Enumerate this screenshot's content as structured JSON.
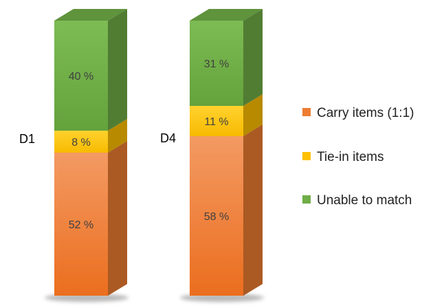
{
  "chart_data": {
    "type": "bar",
    "stacked": true,
    "three_d": true,
    "unit": "%",
    "categories": [
      "D1",
      "D4"
    ],
    "series": [
      {
        "name": "Carry items (1:1)",
        "values": [
          52,
          58
        ],
        "color": "#ED7D31"
      },
      {
        "name": "Tie-in items",
        "values": [
          8,
          11
        ],
        "color": "#FFC000"
      },
      {
        "name": "Unable to match",
        "values": [
          40,
          31
        ],
        "color": "#70AD47"
      }
    ],
    "data_labels": [
      [
        "52 %",
        "58 %"
      ],
      [
        "8 %",
        "11 %"
      ],
      [
        "40 %",
        "31 %"
      ]
    ],
    "ylim": [
      0,
      100
    ],
    "grid": false,
    "legend_position": "right"
  }
}
